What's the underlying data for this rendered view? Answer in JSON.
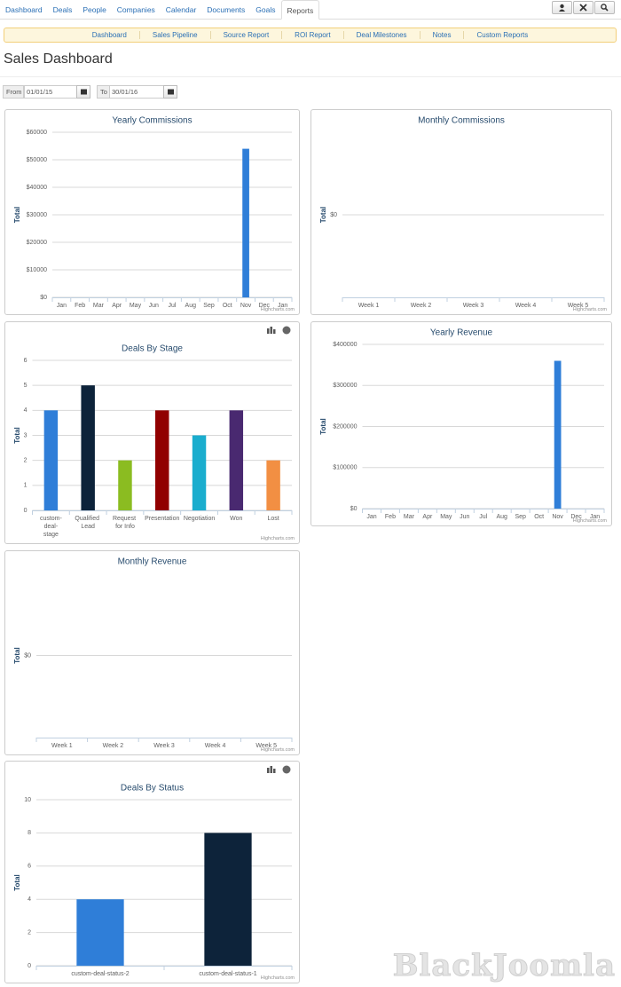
{
  "nav": {
    "tabs": [
      "Dashboard",
      "Deals",
      "People",
      "Companies",
      "Calendar",
      "Documents",
      "Goals",
      "Reports"
    ],
    "active": "Reports"
  },
  "subnav": [
    "Dashboard",
    "Sales Pipeline",
    "Source Report",
    "ROI Report",
    "Deal Milestones",
    "Notes",
    "Custom Reports"
  ],
  "page_title": "Sales Dashboard",
  "filters": {
    "from_label": "From",
    "from_value": "01/01/15",
    "to_label": "To",
    "to_value": "30/01/16"
  },
  "watermark": "BlackJoomla",
  "chart_data": [
    {
      "type": "bar",
      "title": "Yearly Commissions",
      "y_label": "Total",
      "credits": "Highcharts.com",
      "categories": [
        "Jan",
        "Feb",
        "Mar",
        "Apr",
        "May",
        "Jun",
        "Jul",
        "Aug",
        "Sep",
        "Oct",
        "Nov",
        "Dec",
        "Jan"
      ],
      "values": [
        0,
        0,
        0,
        0,
        0,
        0,
        0,
        0,
        0,
        0,
        54000,
        0,
        0
      ],
      "color": "#2f7ed8",
      "ylim": [
        0,
        60000
      ],
      "yticks": [
        {
          "value": 0,
          "label": "$0"
        },
        {
          "value": 10000,
          "label": "$10000"
        },
        {
          "value": 20000,
          "label": "$20000"
        },
        {
          "value": 30000,
          "label": "$30000"
        },
        {
          "value": 40000,
          "label": "$40000"
        },
        {
          "value": 50000,
          "label": "$50000"
        },
        {
          "value": 60000,
          "label": "$60000"
        }
      ],
      "grid": true
    },
    {
      "type": "bar",
      "title": "Monthly Commissions",
      "y_label": "Total",
      "credits": "Highcharts.com",
      "categories": [
        "Week 1",
        "Week 2",
        "Week 3",
        "Week 4",
        "Week 5"
      ],
      "values": [
        0,
        0,
        0,
        0,
        0
      ],
      "color": "#2f7ed8",
      "ylim": [
        -1,
        1
      ],
      "yticks": [
        {
          "value": 0,
          "label": "$0"
        }
      ],
      "grid": true
    },
    {
      "type": "bar",
      "title": "Deals By Stage",
      "y_label": "Total",
      "credits": "Highcharts.com",
      "categories": [
        "custom-deal-stage",
        "Qualified Lead",
        "Request for Info",
        "Presentation",
        "Negotiation",
        "Won",
        "Lost"
      ],
      "values": [
        4,
        5,
        2,
        4,
        3,
        4,
        2
      ],
      "colors": [
        "#2f7ed8",
        "#0d233a",
        "#8bbc21",
        "#910000",
        "#1aadce",
        "#492970",
        "#f28f43"
      ],
      "ylim": [
        0,
        6
      ],
      "yticks": [
        0,
        1,
        2,
        3,
        4,
        5,
        6
      ],
      "grid": true
    },
    {
      "type": "bar",
      "title": "Yearly Revenue",
      "y_label": "Total",
      "credits": "Highcharts.com",
      "categories": [
        "Jan",
        "Feb",
        "Mar",
        "Apr",
        "May",
        "Jun",
        "Jul",
        "Aug",
        "Sep",
        "Oct",
        "Nov",
        "Dec",
        "Jan"
      ],
      "values": [
        0,
        0,
        0,
        0,
        0,
        0,
        0,
        0,
        0,
        0,
        360000,
        0,
        0
      ],
      "color": "#2f7ed8",
      "ylim": [
        0,
        400000
      ],
      "yticks": [
        {
          "value": 0,
          "label": "$0"
        },
        {
          "value": 100000,
          "label": "$100000"
        },
        {
          "value": 200000,
          "label": "$200000"
        },
        {
          "value": 300000,
          "label": "$300000"
        },
        {
          "value": 400000,
          "label": "$400000"
        }
      ],
      "grid": true
    },
    {
      "type": "bar",
      "title": "Monthly Revenue",
      "y_label": "Total",
      "credits": "Highcharts.com",
      "categories": [
        "Week 1",
        "Week 2",
        "Week 3",
        "Week 4",
        "Week 5"
      ],
      "values": [
        0,
        0,
        0,
        0,
        0
      ],
      "color": "#2f7ed8",
      "ylim": [
        -1,
        1
      ],
      "yticks": [
        {
          "value": 0,
          "label": "$0"
        }
      ],
      "grid": true
    },
    {
      "type": "bar",
      "title": "Deals By Status",
      "y_label": "Total",
      "credits": "Highcharts.com",
      "categories": [
        "custom-deal-status-2",
        "custom-deal-status-1"
      ],
      "values": [
        4,
        8
      ],
      "colors": [
        "#2f7ed8",
        "#0d233a"
      ],
      "ylim": [
        0,
        10
      ],
      "yticks": [
        0,
        2,
        4,
        6,
        8,
        10
      ],
      "grid": true
    }
  ]
}
